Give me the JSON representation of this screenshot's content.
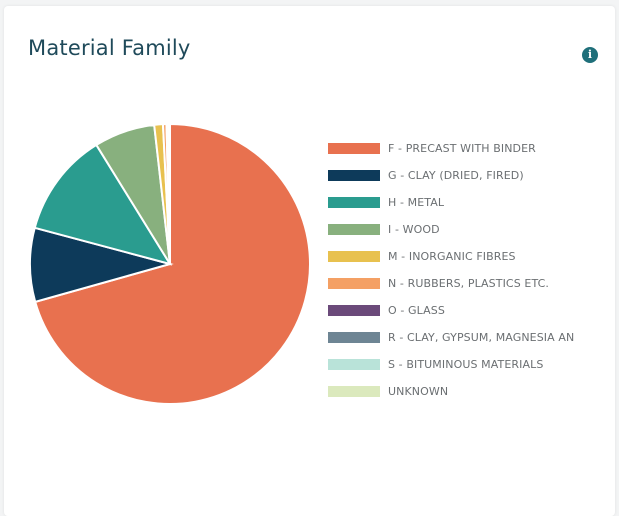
{
  "card": {
    "title": "Material Family",
    "info_icon": "info-icon"
  },
  "chart_data": {
    "type": "pie",
    "title": "Material Family",
    "legend_position": "right",
    "slices": [
      {
        "label": "F - PRECAST WITH BINDER",
        "value": 70.5,
        "color": "#e8714f"
      },
      {
        "label": "G - CLAY (DRIED, FIRED)",
        "value": 8.5,
        "color": "#0d3a5a"
      },
      {
        "label": "H - METAL",
        "value": 12.0,
        "color": "#2a9c8f"
      },
      {
        "label": "I - WOOD",
        "value": 7.0,
        "color": "#88b07e"
      },
      {
        "label": "M - INORGANIC FIBRES",
        "value": 1.0,
        "color": "#e8c14f"
      },
      {
        "label": "N - RUBBERS, PLASTICS ETC.",
        "value": 0.4,
        "color": "#f4a064"
      },
      {
        "label": "O - GLASS",
        "value": 0.2,
        "color": "#6b4a7a"
      },
      {
        "label": "R - CLAY, GYPSUM, MAGNESIA AN",
        "value": 0.2,
        "color": "#6e8594"
      },
      {
        "label": "S - BITUMINOUS MATERIALS",
        "value": 0.0,
        "color": "#b9e3d9"
      },
      {
        "label": "UNKNOWN",
        "value": 0.0,
        "color": "#dbe9bd"
      }
    ]
  }
}
